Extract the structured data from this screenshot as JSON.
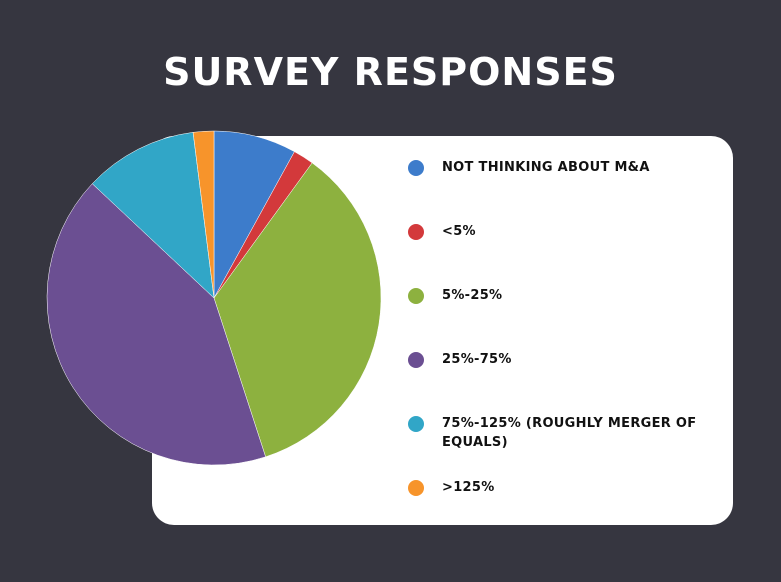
{
  "title": "SURVEY RESPONSES",
  "chart_data": {
    "type": "pie",
    "title": "SURVEY RESPONSES",
    "legend_position": "right",
    "start_angle_deg": 0,
    "slices": [
      {
        "label": "NOT THINKING ABOUT M&A",
        "value": 8,
        "color": "#3d7ccb"
      },
      {
        "label": "<5%",
        "value": 2,
        "color": "#d3393b"
      },
      {
        "label": "5%-25%",
        "value": 35,
        "color": "#8db13f"
      },
      {
        "label": "25%-75%",
        "value": 42,
        "color": "#6b4f92"
      },
      {
        "label": "75%-125% (ROUGHLY MERGER OF EQUALS)",
        "value": 11,
        "color": "#31a6c7"
      },
      {
        "label": ">125%",
        "value": 2,
        "color": "#f7942b"
      }
    ]
  }
}
